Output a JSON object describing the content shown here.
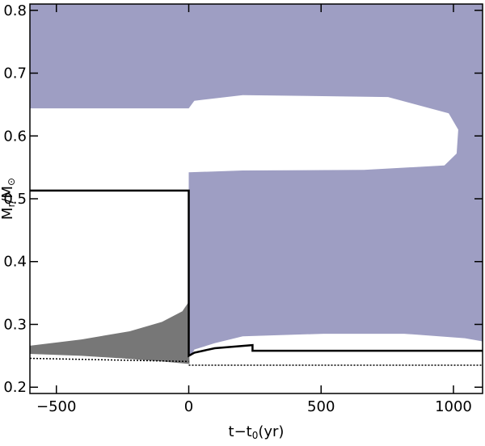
{
  "chart_data": {
    "type": "area",
    "xlabel": [
      {
        "text": "t−t"
      },
      {
        "text": "0",
        "sub": true
      },
      {
        "text": "(yr)"
      }
    ],
    "ylabel": [
      {
        "text": "M"
      },
      {
        "text": "r",
        "sub": true
      },
      {
        "text": "/M"
      },
      {
        "text": "⊙",
        "sub": true
      }
    ],
    "xlim": [
      -600,
      1110
    ],
    "ylim": [
      0.19,
      0.81
    ],
    "xticks": [
      {
        "value": -500,
        "label": "−500"
      },
      0,
      500,
      1000
    ],
    "yticks": [
      0.2,
      0.3,
      0.4,
      0.5,
      0.6,
      0.7,
      0.8
    ],
    "regions": [
      {
        "color": "#9e9ec3",
        "x": [
          -600,
          1110,
          1110,
          1043,
          814,
          509,
          204,
          98,
          21,
          9,
          0,
          0,
          204,
          662,
          966,
          1012,
          1018,
          982,
          753,
          204,
          21,
          0,
          -600
        ],
        "y": [
          0.81,
          0.81,
          0.273,
          0.278,
          0.285,
          0.285,
          0.281,
          0.27,
          0.26,
          0.25,
          0.25,
          0.542,
          0.545,
          0.546,
          0.553,
          0.572,
          0.61,
          0.636,
          0.662,
          0.665,
          0.656,
          0.644,
          0.644
        ]
      },
      {
        "color": "#777777",
        "x": [
          -600,
          -405,
          -223,
          -101,
          -24,
          -3,
          3,
          -101,
          -253,
          -405,
          -600
        ],
        "y": [
          0.266,
          0.276,
          0.289,
          0.304,
          0.321,
          0.334,
          0.237,
          0.241,
          0.246,
          0.25,
          0.253
        ]
      }
    ],
    "lines": [
      {
        "color": "#000000",
        "style": "solid",
        "x": [
          -600,
          0,
          0,
          21,
          98,
          241,
          241,
          1110
        ],
        "y": [
          0.513,
          0.513,
          0.25,
          0.255,
          0.262,
          0.267,
          0.258,
          0.258
        ]
      },
      {
        "color": "#000000",
        "style": "dotted",
        "x": [
          -600,
          0
        ],
        "y": [
          0.246,
          0.241
        ]
      },
      {
        "color": "#000000",
        "style": "dotted",
        "x": [
          0,
          1110
        ],
        "y": [
          0.235,
          0.235
        ]
      }
    ]
  }
}
